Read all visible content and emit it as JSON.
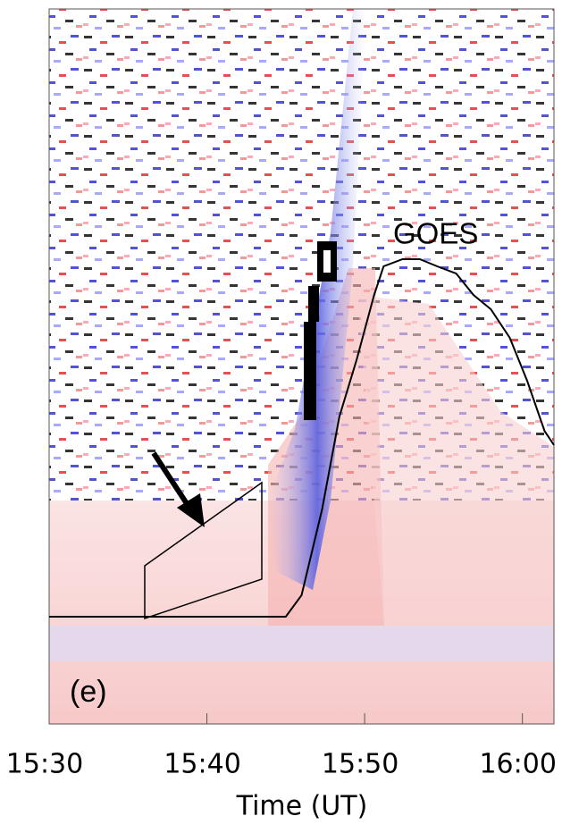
{
  "chart_data": {
    "type": "line",
    "panel_label": "(e)",
    "xlabel": "Time (UT)",
    "annotation": "GOES",
    "x": [
      930,
      944,
      945,
      946,
      947.3,
      948.4,
      949.5,
      950.6,
      951.2,
      952.4,
      953.5,
      954.6,
      955.8,
      956.9,
      958,
      959.2,
      960.3,
      961.4,
      962
    ],
    "series": [
      {
        "color": "#000000",
        "values": [
          0.15,
          0.15,
          0.15,
          0.18,
          0.3,
          0.43,
          0.51,
          0.6,
          0.64,
          0.65,
          0.65,
          0.64,
          0.63,
          0.6,
          0.58,
          0.54,
          0.48,
          0.41,
          0.39
        ]
      }
    ],
    "xlim": [
      930,
      962
    ],
    "ylim": [
      0,
      1
    ],
    "xticks": [
      {
        "value": 930,
        "label": "15:30"
      },
      {
        "value": 940,
        "label": "15:40"
      },
      {
        "value": 950,
        "label": "15:50"
      },
      {
        "value": 960,
        "label": "16:00"
      }
    ]
  }
}
